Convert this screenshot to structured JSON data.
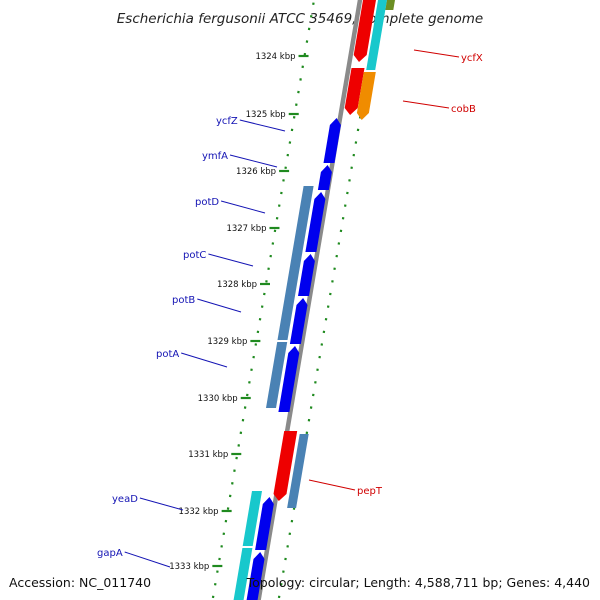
{
  "title": "Escherichia fergusonii ATCC 35469, complete genome",
  "footer": {
    "accession": "Accession: NC_011740",
    "stats": "Topology: circular; Length: 4,588,711 bp; Genes: 4,440"
  },
  "colors": {
    "backbone": "#8a8a8a",
    "dotted_track": "#1f8a1f",
    "left_label": "#1414b4",
    "right_label": "#d00000",
    "cds_blue": "#0000ee",
    "cds_red": "#ee0000",
    "cds_steel": "#4a82b4",
    "cds_cyan": "#18c8cc",
    "cds_orange": "#f08c00",
    "cds_olive": "#6b8e23"
  },
  "ticks": [
    {
      "label": "1324 kbp"
    },
    {
      "label": "1325 kbp"
    },
    {
      "label": "1326 kbp"
    },
    {
      "label": "1327 kbp"
    },
    {
      "label": "1328 kbp"
    },
    {
      "label": "1329 kbp"
    },
    {
      "label": "1330 kbp"
    },
    {
      "label": "1331 kbp"
    },
    {
      "label": "1332 kbp"
    },
    {
      "label": "1333 kbp"
    }
  ],
  "left_gene_labels": [
    {
      "text": "ycfZ"
    },
    {
      "text": "ymfA"
    },
    {
      "text": "potD"
    },
    {
      "text": "potC"
    },
    {
      "text": "potB"
    },
    {
      "text": "potA"
    },
    {
      "text": "yeaD"
    },
    {
      "text": "gapA"
    }
  ],
  "right_gene_labels": [
    {
      "text": "ycfX"
    },
    {
      "text": "cobB"
    },
    {
      "text": "pepT"
    }
  ]
}
